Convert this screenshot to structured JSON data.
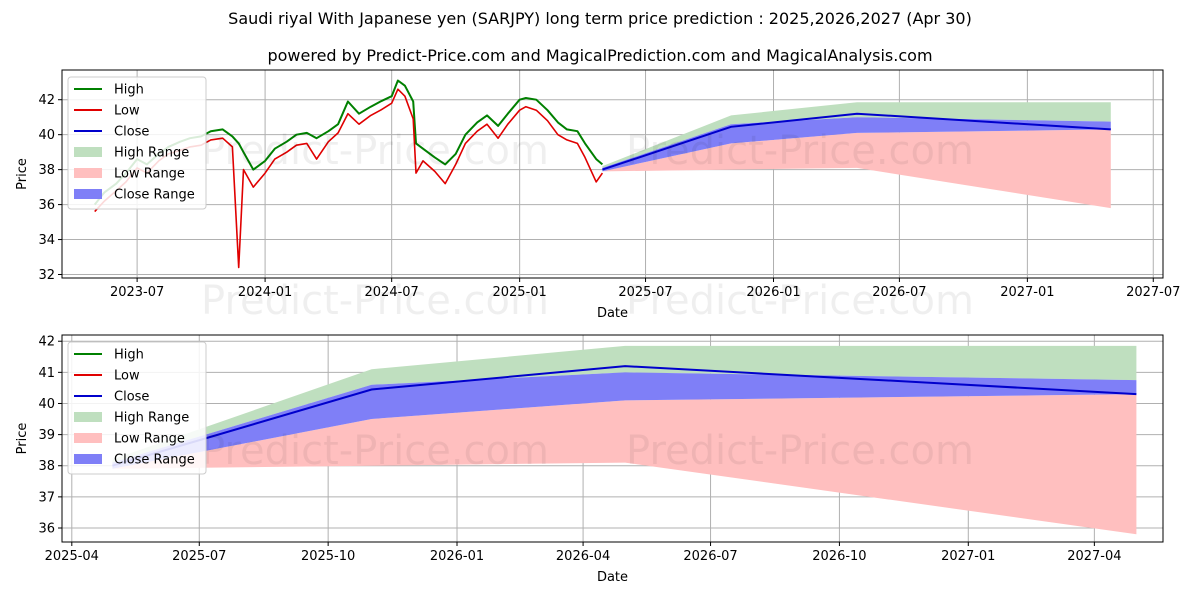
{
  "header": {
    "title": "Saudi riyal With Japanese yen (SARJPY) long term price prediction : 2025,2026,2027 (Apr 30)",
    "subtitle": "powered by Predict-Price.com and MagicalPrediction.com and MagicalAnalysis.com"
  },
  "watermark": "Predict-Price.com",
  "colors": {
    "high": "#008000",
    "low": "#e00000",
    "close": "#0000cc",
    "high_range": "#bfdfbf",
    "low_range": "#ffbfbf",
    "close_range": "#7f7ff7",
    "grid": "#b0b0b0"
  },
  "legend": [
    "High",
    "Low",
    "Close",
    "High Range",
    "Low Range",
    "Close Range"
  ],
  "chart_data": [
    {
      "type": "line",
      "xlabel": "Date",
      "ylabel": "Price",
      "xlim": [
        "2023-03-15",
        "2027-07-15"
      ],
      "ylim": [
        31.8,
        43.7
      ],
      "x_ticks": [
        "2023-07",
        "2024-01",
        "2024-07",
        "2025-01",
        "2025-07",
        "2026-01",
        "2026-07",
        "2027-01",
        "2027-07"
      ],
      "y_ticks": [
        32,
        34,
        36,
        38,
        40,
        42
      ],
      "grid": true,
      "legend_position": "upper-left",
      "history": {
        "dates": [
          "2023-05-01",
          "2023-05-15",
          "2023-06-01",
          "2023-06-15",
          "2023-07-01",
          "2023-07-15",
          "2023-08-01",
          "2023-08-15",
          "2023-09-01",
          "2023-09-15",
          "2023-10-01",
          "2023-10-15",
          "2023-11-01",
          "2023-11-15",
          "2023-11-24",
          "2023-12-01",
          "2023-12-15",
          "2024-01-01",
          "2024-01-15",
          "2024-02-01",
          "2024-02-15",
          "2024-03-01",
          "2024-03-15",
          "2024-04-01",
          "2024-04-15",
          "2024-04-29",
          "2024-05-15",
          "2024-06-01",
          "2024-06-15",
          "2024-07-01",
          "2024-07-10",
          "2024-07-20",
          "2024-08-01",
          "2024-08-05",
          "2024-08-15",
          "2024-09-01",
          "2024-09-16",
          "2024-10-01",
          "2024-10-15",
          "2024-11-01",
          "2024-11-15",
          "2024-12-01",
          "2024-12-15",
          "2025-01-01",
          "2025-01-10",
          "2025-01-25",
          "2025-02-10",
          "2025-02-25",
          "2025-03-10",
          "2025-03-25",
          "2025-04-05",
          "2025-04-21",
          "2025-04-30"
        ],
        "high": [
          36.0,
          36.7,
          37.2,
          37.8,
          38.6,
          38.3,
          38.9,
          39.3,
          39.6,
          39.8,
          39.9,
          40.2,
          40.3,
          39.9,
          39.5,
          39.0,
          38.0,
          38.5,
          39.2,
          39.6,
          40.0,
          40.1,
          39.8,
          40.2,
          40.6,
          41.9,
          41.2,
          41.6,
          41.9,
          42.2,
          43.1,
          42.8,
          41.9,
          39.5,
          39.2,
          38.7,
          38.3,
          38.9,
          40.0,
          40.7,
          41.1,
          40.5,
          41.2,
          42.0,
          42.1,
          42.0,
          41.4,
          40.7,
          40.3,
          40.2,
          39.5,
          38.6,
          38.3
        ],
        "low": [
          35.6,
          36.2,
          36.8,
          37.3,
          38.1,
          37.8,
          38.5,
          38.9,
          39.1,
          39.3,
          39.4,
          39.7,
          39.8,
          39.3,
          32.4,
          38.0,
          37.0,
          37.8,
          38.6,
          39.0,
          39.4,
          39.5,
          38.6,
          39.6,
          40.1,
          41.2,
          40.6,
          41.1,
          41.4,
          41.8,
          42.6,
          42.2,
          40.9,
          37.8,
          38.5,
          37.9,
          37.2,
          38.3,
          39.5,
          40.2,
          40.6,
          39.8,
          40.6,
          41.4,
          41.6,
          41.4,
          40.8,
          40.0,
          39.7,
          39.5,
          38.7,
          37.3,
          37.8
        ],
        "close": [
          35.8,
          36.5,
          37.0,
          37.6,
          38.4,
          38.1,
          38.7,
          39.1,
          39.4,
          39.6,
          39.7,
          40.0,
          40.1,
          39.6,
          38.8,
          38.5,
          37.5,
          38.2,
          38.9,
          39.3,
          39.7,
          39.8,
          39.2,
          39.9,
          40.4,
          41.6,
          40.9,
          41.4,
          41.7,
          42.0,
          42.9,
          42.5,
          41.4,
          38.6,
          38.8,
          38.3,
          37.7,
          38.6,
          39.7,
          40.4,
          40.8,
          40.1,
          40.9,
          41.7,
          41.9,
          41.7,
          41.1,
          40.3,
          40.0,
          39.8,
          39.1,
          37.9,
          38.0
        ]
      },
      "forecast": {
        "dates": [
          "2025-04-30",
          "2025-11-01",
          "2026-05-01",
          "2027-05-01"
        ],
        "high_upper": [
          38.2,
          41.1,
          41.85,
          41.85
        ],
        "close_upper": [
          38.1,
          40.6,
          41.0,
          40.75
        ],
        "close": [
          38.0,
          40.45,
          41.2,
          40.3
        ],
        "close_lower": [
          37.9,
          39.5,
          40.1,
          40.3
        ],
        "low_upper": [
          37.9,
          39.5,
          40.1,
          40.3
        ],
        "low_lower": [
          37.9,
          38.0,
          38.1,
          35.8
        ]
      }
    },
    {
      "type": "area",
      "xlabel": "Date",
      "ylabel": "Price",
      "xlim": [
        "2025-03-25",
        "2027-05-20"
      ],
      "ylim": [
        35.55,
        42.2
      ],
      "x_ticks": [
        "2025-04",
        "2025-07",
        "2025-10",
        "2026-01",
        "2026-04",
        "2026-07",
        "2026-10",
        "2027-01",
        "2027-04"
      ],
      "y_ticks": [
        36,
        37,
        38,
        39,
        40,
        41,
        42
      ],
      "grid": true,
      "legend_position": "upper-left"
    }
  ]
}
